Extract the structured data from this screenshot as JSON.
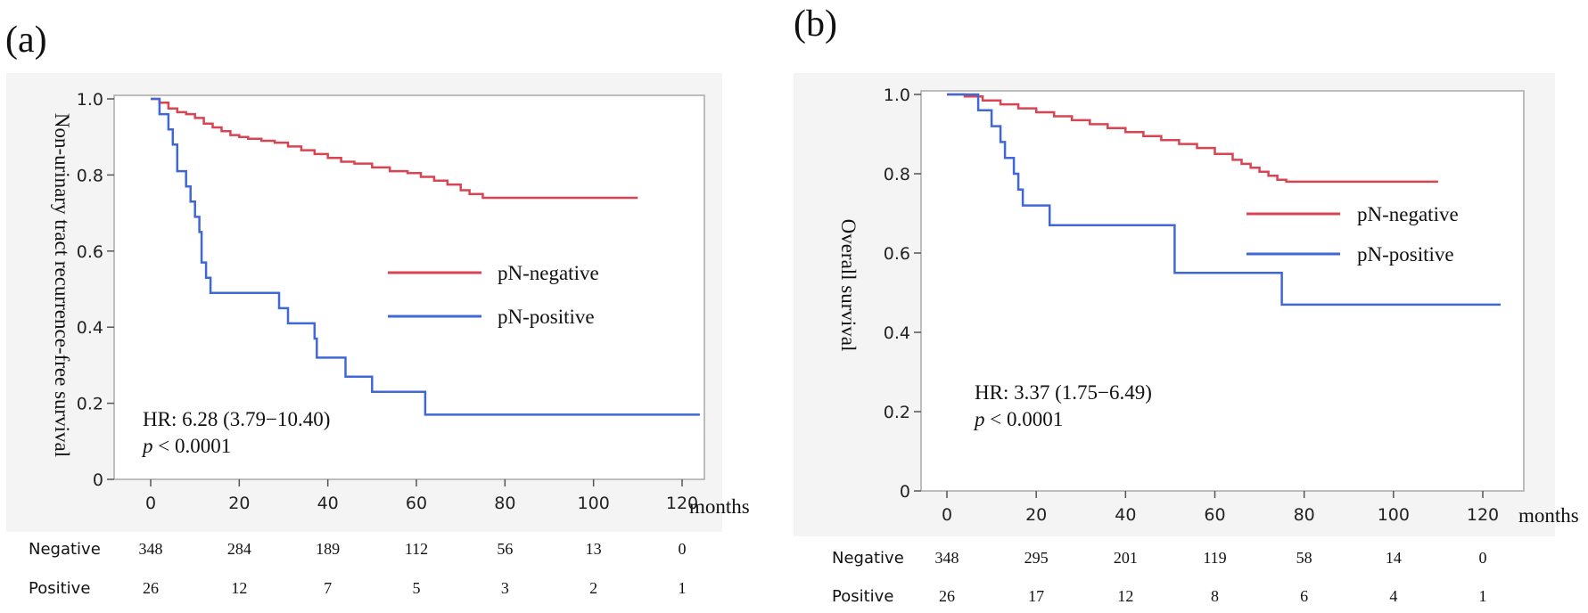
{
  "colors": {
    "negative": "#d94452",
    "positive": "#3f68d6",
    "panel_bg": "#f4f4f4",
    "plot_frame": "#a9a9a9"
  },
  "chart_data": [
    {
      "id": "a",
      "type": "line",
      "panel_label": "(a)",
      "ylabel": "Non-urinary tract recurrence-free survival",
      "xlabel": "months",
      "xlim": [
        -5,
        125
      ],
      "ylim": [
        0,
        1.0
      ],
      "x_ticks": [
        0,
        20,
        40,
        60,
        80,
        100,
        120
      ],
      "y_ticks": [
        0,
        0.2,
        0.4,
        0.6,
        0.8,
        1.0
      ],
      "y_tick_labels": [
        "0",
        "0.2",
        "0.4",
        "0.6",
        "0.8",
        "1.0"
      ],
      "legend": [
        "pN-negative",
        "pN-positive"
      ],
      "annotation": {
        "hr_text": "HR: 6.28 (3.79−10.40)",
        "p_italic": "p",
        "p_rest": " < 0.0001"
      },
      "risk_table": {
        "rows": [
          {
            "label": "Negative",
            "counts": [
              "348",
              "284",
              "189",
              "112",
              "56",
              "13",
              "0"
            ]
          },
          {
            "label": "Positive",
            "counts": [
              "26",
              "12",
              "7",
              "5",
              "3",
              "2",
              "1"
            ]
          }
        ]
      },
      "series": [
        {
          "name": "pN-negative",
          "points": [
            [
              0,
              1.0
            ],
            [
              2,
              0.99
            ],
            [
              4,
              0.975
            ],
            [
              6,
              0.965
            ],
            [
              8,
              0.96
            ],
            [
              10,
              0.95
            ],
            [
              12,
              0.935
            ],
            [
              14,
              0.925
            ],
            [
              16,
              0.915
            ],
            [
              18,
              0.905
            ],
            [
              20,
              0.9
            ],
            [
              22,
              0.895
            ],
            [
              25,
              0.89
            ],
            [
              28,
              0.885
            ],
            [
              31,
              0.875
            ],
            [
              34,
              0.865
            ],
            [
              37,
              0.855
            ],
            [
              40,
              0.845
            ],
            [
              43,
              0.835
            ],
            [
              46,
              0.83
            ],
            [
              50,
              0.82
            ],
            [
              54,
              0.81
            ],
            [
              58,
              0.805
            ],
            [
              61,
              0.795
            ],
            [
              64,
              0.785
            ],
            [
              67,
              0.775
            ],
            [
              70,
              0.76
            ],
            [
              72,
              0.75
            ],
            [
              75,
              0.74
            ],
            [
              80,
              0.74
            ],
            [
              90,
              0.74
            ],
            [
              100,
              0.74
            ],
            [
              110,
              0.74
            ]
          ]
        },
        {
          "name": "pN-positive",
          "points": [
            [
              0,
              1.0
            ],
            [
              2,
              0.96
            ],
            [
              4,
              0.92
            ],
            [
              5,
              0.88
            ],
            [
              6,
              0.81
            ],
            [
              8,
              0.77
            ],
            [
              9,
              0.73
            ],
            [
              10,
              0.69
            ],
            [
              11,
              0.65
            ],
            [
              11.5,
              0.57
            ],
            [
              12.5,
              0.53
            ],
            [
              13.5,
              0.49
            ],
            [
              29,
              0.45
            ],
            [
              31,
              0.41
            ],
            [
              37,
              0.37
            ],
            [
              37.5,
              0.32
            ],
            [
              44,
              0.27
            ],
            [
              50,
              0.23
            ],
            [
              62,
              0.17
            ],
            [
              124,
              0.17
            ]
          ]
        }
      ]
    },
    {
      "id": "b",
      "type": "line",
      "panel_label": "(b)",
      "ylabel": "Overall survival",
      "xlabel": "months",
      "xlim": [
        -5,
        125
      ],
      "ylim": [
        0,
        1.0
      ],
      "x_ticks": [
        0,
        20,
        40,
        60,
        80,
        100,
        120
      ],
      "y_ticks": [
        0,
        0.2,
        0.4,
        0.6,
        0.8,
        1.0
      ],
      "y_tick_labels": [
        "0",
        "0.2",
        "0.4",
        "0.6",
        "0.8",
        "1.0"
      ],
      "legend": [
        "pN-negative",
        "pN-positive"
      ],
      "annotation": {
        "hr_text": "HR: 3.37 (1.75−6.49)",
        "p_italic": "p",
        "p_rest": " < 0.0001"
      },
      "risk_table": {
        "rows": [
          {
            "label": "Negative",
            "counts": [
              "348",
              "295",
              "201",
              "119",
              "58",
              "14",
              "0"
            ]
          },
          {
            "label": "Positive",
            "counts": [
              "26",
              "17",
              "12",
              "8",
              "6",
              "4",
              "1"
            ]
          }
        ]
      },
      "series": [
        {
          "name": "pN-negative",
          "points": [
            [
              0,
              1.0
            ],
            [
              4,
              0.995
            ],
            [
              8,
              0.985
            ],
            [
              12,
              0.975
            ],
            [
              16,
              0.965
            ],
            [
              20,
              0.955
            ],
            [
              24,
              0.945
            ],
            [
              28,
              0.935
            ],
            [
              32,
              0.925
            ],
            [
              36,
              0.915
            ],
            [
              40,
              0.905
            ],
            [
              44,
              0.895
            ],
            [
              48,
              0.885
            ],
            [
              52,
              0.875
            ],
            [
              56,
              0.865
            ],
            [
              60,
              0.85
            ],
            [
              64,
              0.835
            ],
            [
              66,
              0.825
            ],
            [
              68,
              0.815
            ],
            [
              70,
              0.805
            ],
            [
              72,
              0.795
            ],
            [
              74,
              0.785
            ],
            [
              76,
              0.78
            ],
            [
              90,
              0.78
            ],
            [
              110,
              0.78
            ]
          ]
        },
        {
          "name": "pN-positive",
          "points": [
            [
              0,
              1.0
            ],
            [
              7,
              0.96
            ],
            [
              10,
              0.92
            ],
            [
              12,
              0.88
            ],
            [
              13,
              0.84
            ],
            [
              15,
              0.8
            ],
            [
              16,
              0.76
            ],
            [
              17,
              0.72
            ],
            [
              23,
              0.67
            ],
            [
              51,
              0.55
            ],
            [
              75,
              0.47
            ],
            [
              124,
              0.47
            ]
          ]
        }
      ]
    }
  ]
}
